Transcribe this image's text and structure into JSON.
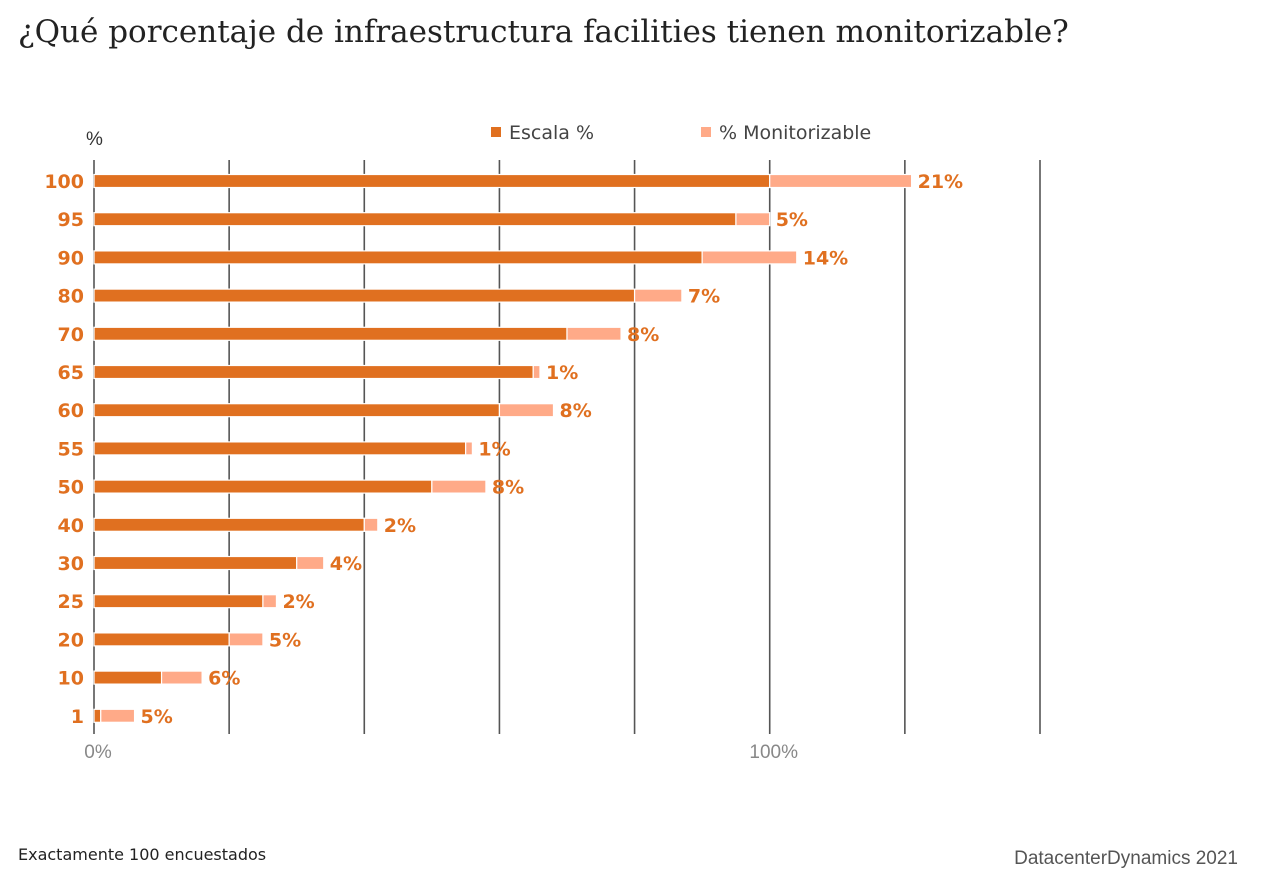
{
  "title": "¿Qué porcentaje de infraestructura facilities tienen monitorizable?",
  "footnote": "Exactamente 100 encuestados",
  "credit": "DatacenterDynamics 2021",
  "colors": {
    "escala": "#e07020",
    "monitorizable": "#ffaa88",
    "label": "#e07020",
    "grid": "#555555",
    "tick": "#888888"
  },
  "chart_data": {
    "type": "bar",
    "orientation": "horizontal",
    "stacked": true,
    "ylabel": "%",
    "categories": [
      "100",
      "95",
      "90",
      "80",
      "70",
      "65",
      "60",
      "55",
      "50",
      "40",
      "30",
      "25",
      "20",
      "10",
      "1"
    ],
    "series": [
      {
        "name": "Escala %",
        "values": [
          100,
          95,
          90,
          80,
          70,
          65,
          60,
          55,
          50,
          40,
          30,
          25,
          20,
          10,
          1
        ]
      },
      {
        "name": "% Monitorizable",
        "values": [
          21,
          5,
          14,
          7,
          8,
          1,
          8,
          1,
          8,
          2,
          4,
          2,
          5,
          6,
          5
        ]
      }
    ],
    "data_labels": [
      "21%",
      "5%",
      "14%",
      "7%",
      "8%",
      "1%",
      "8%",
      "1%",
      "8%",
      "2%",
      "4%",
      "2%",
      "5%",
      "6%",
      "5%"
    ],
    "xlim": [
      0,
      140
    ],
    "x_gridlines": [
      0,
      20,
      40,
      60,
      80,
      100,
      120,
      140
    ],
    "x_tick_labels": [
      {
        "value": 0,
        "label": "0%"
      },
      {
        "value": 100,
        "label": "100%"
      }
    ],
    "legend_position": "top-center",
    "grid": true
  }
}
